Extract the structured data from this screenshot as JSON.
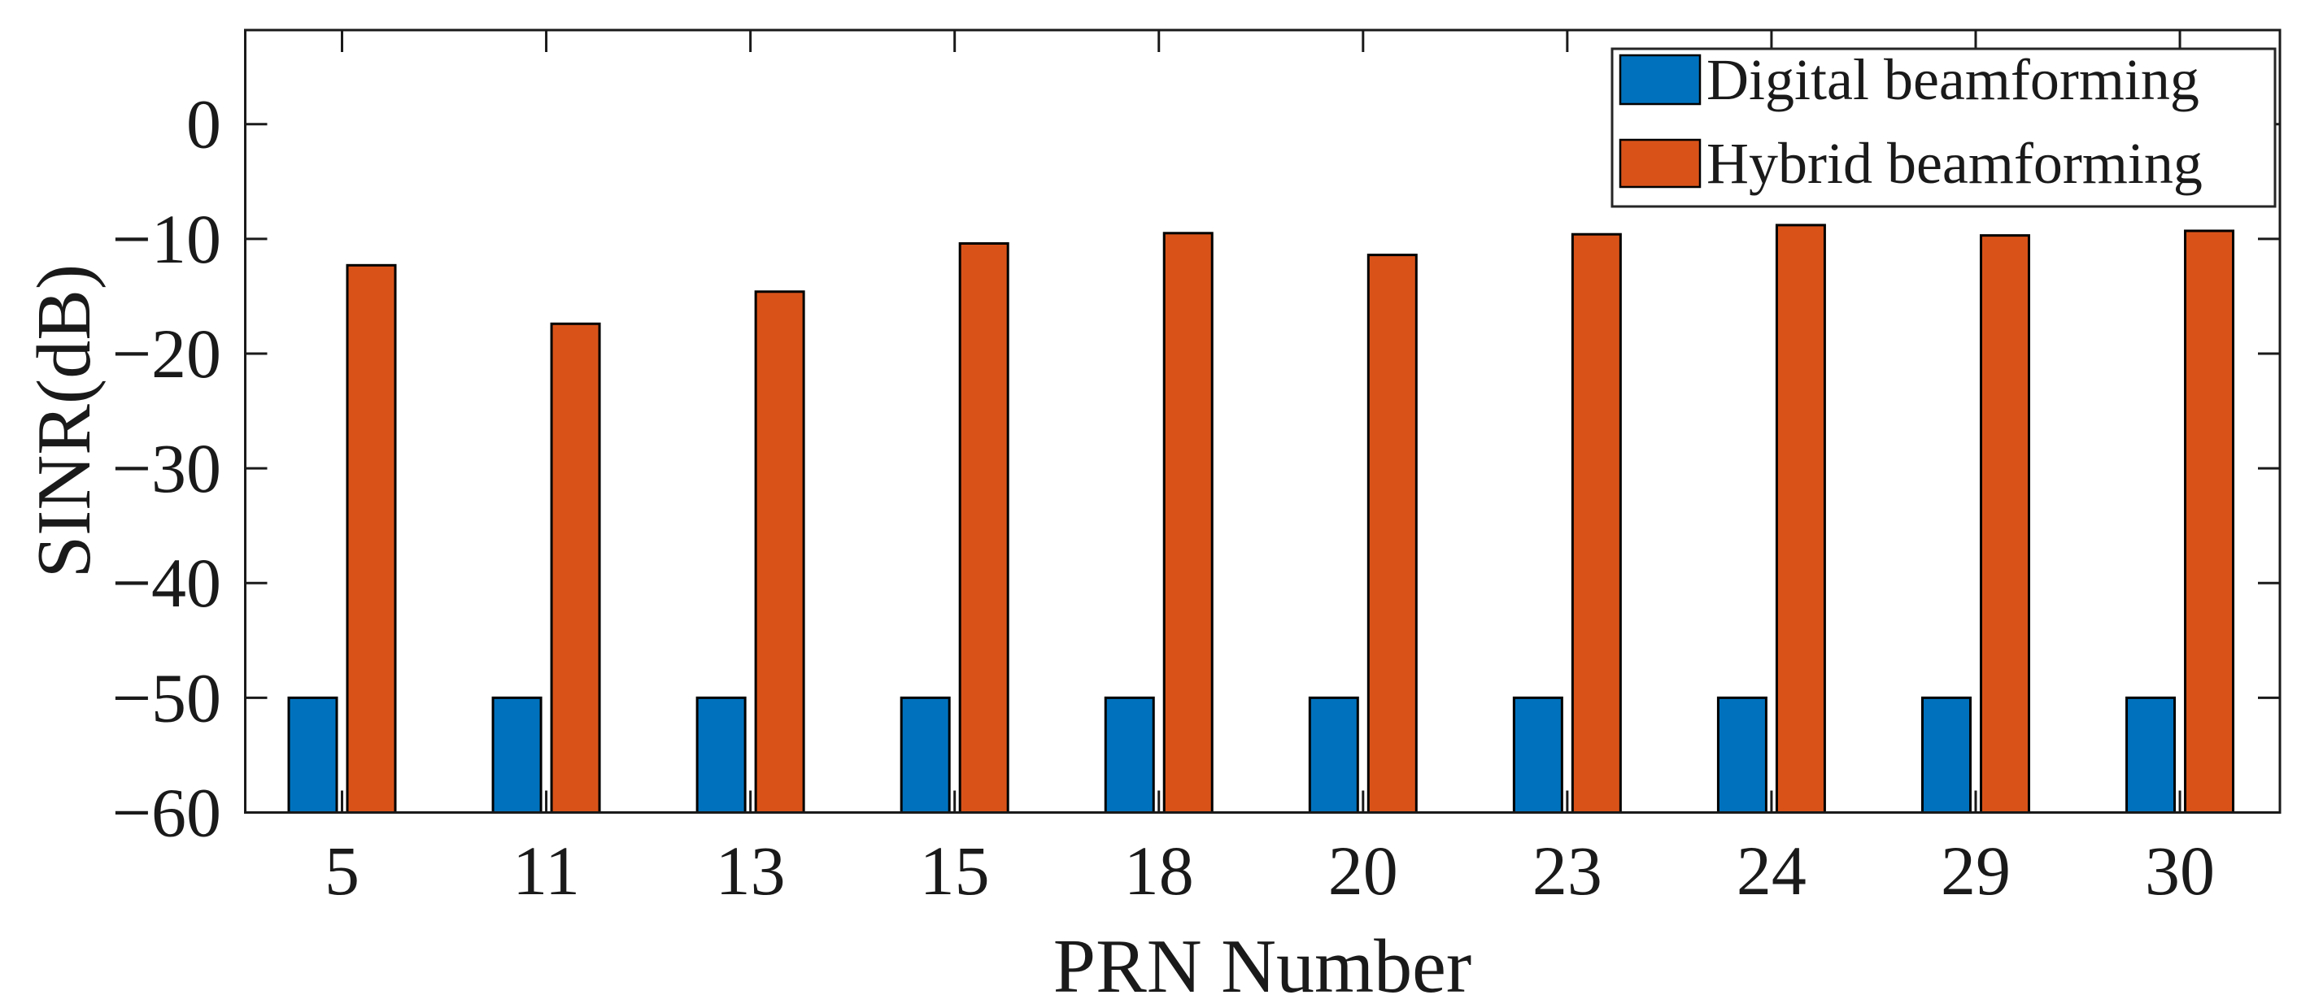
{
  "chart_data": {
    "type": "bar",
    "categories": [
      "5",
      "11",
      "13",
      "15",
      "18",
      "20",
      "23",
      "24",
      "29",
      "30"
    ],
    "series": [
      {
        "name": "Digital beamforming",
        "color": "#0072BD",
        "values": [
          -50,
          -50,
          -50,
          -50,
          -50,
          -50,
          -50,
          -50,
          -50,
          -50
        ]
      },
      {
        "name": "Hybrid beamforming",
        "color": "#D95319",
        "values": [
          -12.3,
          -17.4,
          -14.6,
          -10.4,
          -9.5,
          -11.4,
          -9.6,
          -8.8,
          -9.7,
          -9.3
        ]
      }
    ],
    "title": "",
    "xlabel": "PRN Number",
    "ylabel": "SINR(dB)",
    "ylim": [
      -60,
      8.2
    ],
    "yticks": [
      0,
      -10,
      -20,
      -30,
      -40,
      -50,
      -60
    ],
    "bar_baseline": -60,
    "grid": false,
    "legend": {
      "position": "top-right",
      "entries": [
        "Digital beamforming",
        "Hybrid beamforming"
      ]
    },
    "colors": {
      "axis": "#1a1a1a",
      "bar_edge": "#000000",
      "background": "#ffffff",
      "legend_border": "#262626"
    }
  }
}
